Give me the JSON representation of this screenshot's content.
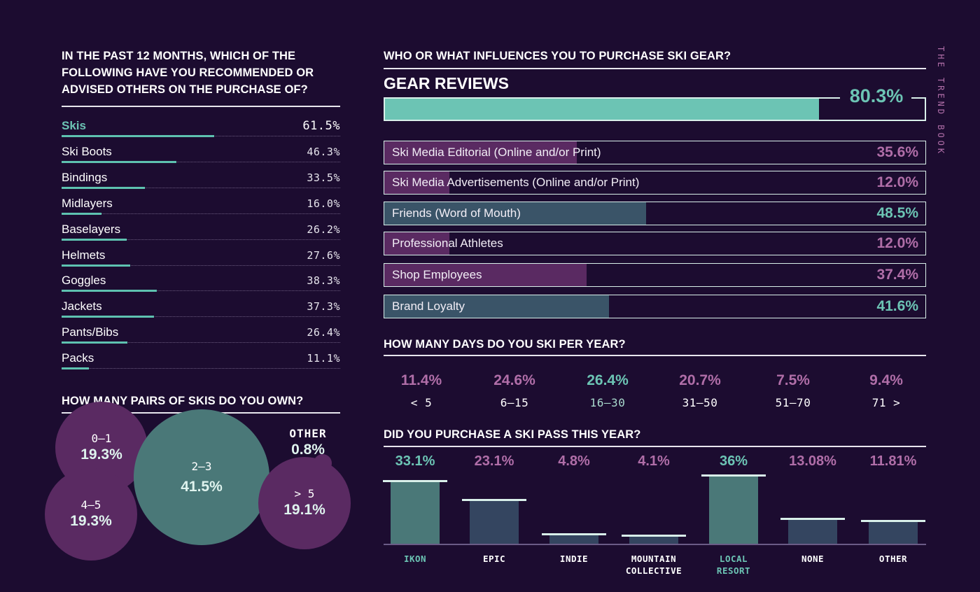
{
  "side_title": "THE TREND BOOK",
  "colors": {
    "background": "#1c0c30",
    "teal": "#6cc4b4",
    "mauve": "#b06ea8",
    "teal_fill": "#3a5468",
    "mauve_fill": "#5a2a62",
    "bar_teal": "#4a7878",
    "bar_slate": "#344560"
  },
  "recommend": {
    "title_lines": [
      "IN THE PAST 12 MONTHS, WHICH OF THE",
      "FOLLOWING HAVE YOU RECOMMENDED OR",
      "ADVISED OTHERS ON THE PURCHASE OF?"
    ]
  },
  "influence": {
    "title": "WHO OR WHAT INFLUENCES YOU TO PURCHASE SKI GEAR?",
    "top_label": "GEAR REVIEWS",
    "top_value": "80.3%"
  },
  "days": {
    "title": "HOW MANY DAYS DO YOU SKI PER YEAR?"
  },
  "skis_owned": {
    "title": "HOW MANY PAIRS OF SKIS DO YOU OWN?"
  },
  "pass": {
    "title": "DID YOU PURCHASE A SKI PASS THIS YEAR?"
  },
  "chart_data": [
    {
      "id": "recommend",
      "type": "bar",
      "title": "IN THE PAST 12 MONTHS, WHICH OF THE FOLLOWING HAVE YOU RECOMMENDED OR ADVISED OTHERS ON THE PURCHASE OF?",
      "categories": [
        "Skis",
        "Ski Boots",
        "Bindings",
        "Midlayers",
        "Baselayers",
        "Helmets",
        "Goggles",
        "Jackets",
        "Pants/Bibs",
        "Packs"
      ],
      "values": [
        61.5,
        46.3,
        33.5,
        16.0,
        26.2,
        27.6,
        38.3,
        37.3,
        26.4,
        11.1
      ],
      "labels": [
        "61.5%",
        "46.3%",
        "33.5%",
        "16.0%",
        "26.2%",
        "27.6%",
        "38.3%",
        "37.3%",
        "26.4%",
        "11.1%"
      ],
      "highlight": "Skis",
      "ylim": [
        0,
        100
      ]
    },
    {
      "id": "influences",
      "type": "bar",
      "title": "WHO OR WHAT INFLUENCES YOU TO PURCHASE SKI GEAR?",
      "categories": [
        "GEAR REVIEWS",
        "Ski Media Editorial (Online and/or Print)",
        "Ski Media Advertisements (Online and/or Print)",
        "Friends (Word of Mouth)",
        "Professional Athletes",
        "Shop Employees",
        "Brand Loyalty"
      ],
      "values": [
        80.3,
        35.6,
        12.0,
        48.5,
        12.0,
        37.4,
        41.6
      ],
      "labels": [
        "80.3%",
        "35.6%",
        "12.0%",
        "48.5%",
        "12.0%",
        "37.4%",
        "41.6%"
      ],
      "tones": [
        "teal",
        "mauve",
        "mauve",
        "teal",
        "mauve",
        "mauve",
        "teal"
      ],
      "ylim": [
        0,
        100
      ]
    },
    {
      "id": "days",
      "type": "table",
      "title": "HOW MANY DAYS DO YOU SKI PER YEAR?",
      "categories": [
        "< 5",
        "6–15",
        "16–30",
        "31–50",
        "51–70",
        "71 >"
      ],
      "values": [
        11.4,
        24.6,
        26.4,
        20.7,
        7.5,
        9.4
      ],
      "labels": [
        "11.4%",
        "24.6%",
        "26.4%",
        "20.7%",
        "7.5%",
        "9.4%"
      ],
      "highlight": "16–30"
    },
    {
      "id": "skis_owned",
      "type": "scatter",
      "title": "HOW MANY PAIRS OF SKIS DO YOU OWN?",
      "categories": [
        "0–1",
        "2–3",
        "4–5",
        "> 5",
        "OTHER"
      ],
      "values": [
        19.3,
        41.5,
        19.3,
        19.1,
        0.8
      ],
      "labels": [
        "19.3%",
        "41.5%",
        "19.3%",
        "19.1%",
        "0.8%"
      ]
    },
    {
      "id": "pass",
      "type": "bar",
      "title": "DID YOU PURCHASE A SKI PASS THIS YEAR?",
      "categories": [
        "IKON",
        "EPIC",
        "INDIE",
        "MOUNTAIN\nCOLLECTIVE",
        "LOCAL\nRESORT",
        "NONE",
        "OTHER"
      ],
      "values": [
        33.1,
        23.1,
        4.8,
        4.1,
        36,
        13.08,
        11.81
      ],
      "labels": [
        "33.1%",
        "23.1%",
        "4.8%",
        "4.1%",
        "36%",
        "13.08%",
        "11.81%"
      ],
      "tones": [
        "teal",
        "mauve",
        "mauve",
        "mauve",
        "teal",
        "mauve",
        "mauve"
      ],
      "ylim": [
        0,
        36
      ]
    }
  ]
}
